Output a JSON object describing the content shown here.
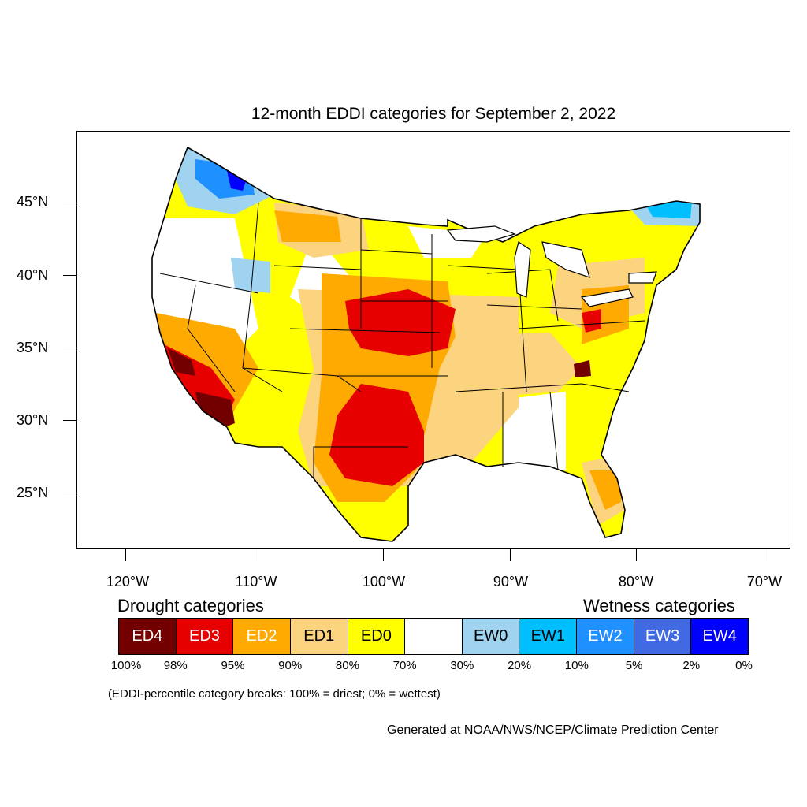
{
  "title": "12-month EDDI categories for September 2, 2022",
  "lat_labels": [
    "45°N",
    "40°N",
    "35°N",
    "30°N",
    "25°N"
  ],
  "lon_labels": [
    "120°W",
    "110°W",
    "100°W",
    "90°W",
    "80°W",
    "70°W"
  ],
  "legend": {
    "drought_heading": "Drought categories",
    "wetness_heading": "Wetness categories",
    "categories": [
      {
        "label": "ED4",
        "color": "#730000",
        "text_color": "#ffffff"
      },
      {
        "label": "ED3",
        "color": "#e60000",
        "text_color": "#ffffff"
      },
      {
        "label": "ED2",
        "color": "#ffaa00",
        "text_color": "#ffffff"
      },
      {
        "label": "ED1",
        "color": "#fcd37f",
        "text_color": "#000000"
      },
      {
        "label": "ED0",
        "color": "#ffff00",
        "text_color": "#000000"
      },
      {
        "label": "",
        "color": "#ffffff",
        "text_color": "#000000"
      },
      {
        "label": "EW0",
        "color": "#9fd3f0",
        "text_color": "#000000"
      },
      {
        "label": "EW1",
        "color": "#00bfff",
        "text_color": "#000000"
      },
      {
        "label": "EW2",
        "color": "#1e90ff",
        "text_color": "#ffffff"
      },
      {
        "label": "EW3",
        "color": "#4169e1",
        "text_color": "#ffffff"
      },
      {
        "label": "EW4",
        "color": "#0000ff",
        "text_color": "#ffffff"
      }
    ],
    "percent_breaks": [
      "100%",
      "98%",
      "95%",
      "90%",
      "80%",
      "70%",
      "30%",
      "20%",
      "10%",
      "5%",
      "2%",
      "0%"
    ]
  },
  "note": "(EDDI-percentile category breaks: 100% = driest; 0% = wettest)",
  "credit": "Generated at NOAA/NWS/NCEP/Climate Prediction Center"
}
